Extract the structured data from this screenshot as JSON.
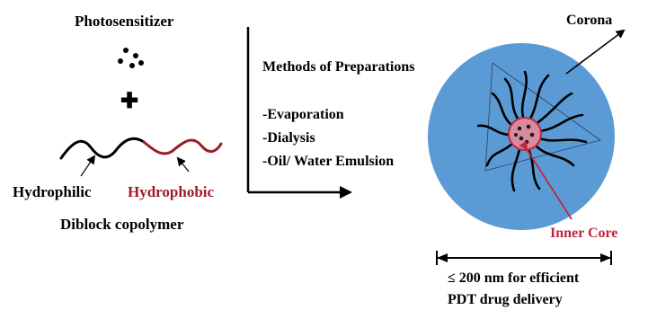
{
  "labels": {
    "photosensitizer": "Photosensitizer",
    "hydrophilic": "Hydrophilic",
    "hydrophobic": "Hydrophobic",
    "diblock": "Diblock copolymer",
    "methods_title": "Methods of Preparations",
    "method_1": "-Evaporation",
    "method_2": "-Dialysis",
    "method_3": "-Oil/ Water Emulsion",
    "corona": "Corona",
    "inner_core": "Inner Core",
    "size_line1": "≤ 200 nm for efficient",
    "size_line2": "PDT drug delivery",
    "plus_symbol": "✚"
  },
  "colors": {
    "text": "#000000",
    "hydrophobic": "#9c1c2b",
    "micelle_fill": "#5b9bd5",
    "core": "#c0263c",
    "polymer_black": "#000000"
  }
}
